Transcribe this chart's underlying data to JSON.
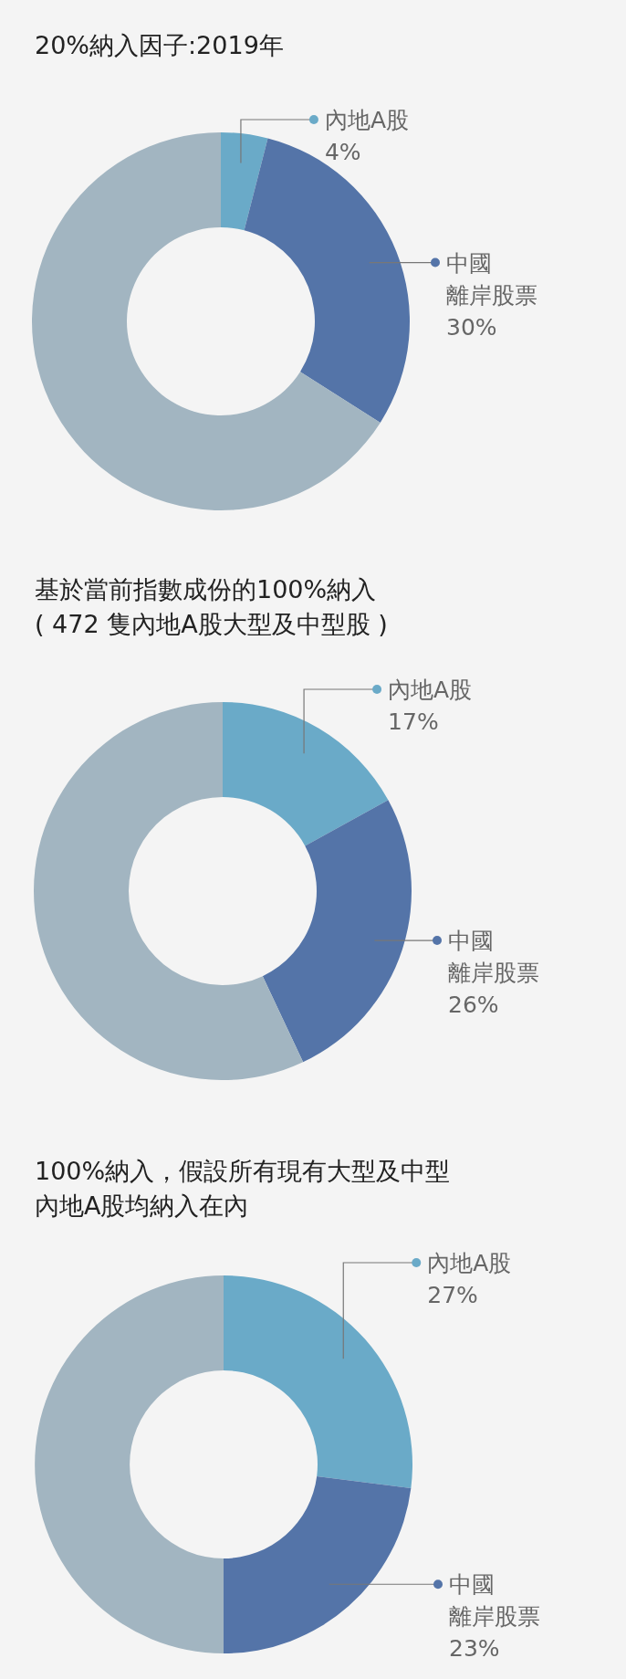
{
  "chart_data": [
    {
      "type": "donut",
      "title": "20%納入因子:2019年",
      "legend": "right",
      "categories": [
        "內地A股",
        "中國離岸股票",
        null
      ],
      "values": [
        4,
        30,
        66
      ],
      "value_labels": [
        "4%",
        "30%",
        null
      ],
      "colors": [
        "#6aaac8",
        "#5474a8",
        "#a2b5c1"
      ]
    },
    {
      "type": "donut",
      "title": "基於當前指數成份的100%納入\n( 472 隻內地A股大型及中型股 )",
      "legend": "right",
      "categories": [
        "內地A股",
        "中國離岸股票",
        null
      ],
      "values": [
        17,
        26,
        57
      ],
      "value_labels": [
        "17%",
        "26%",
        null
      ],
      "colors": [
        "#6aaac8",
        "#5474a8",
        "#a2b5c1"
      ]
    },
    {
      "type": "donut",
      "title": "100%納入，假設所有現有大型及中型內地A股均納入在內",
      "legend": "right",
      "categories": [
        "內地A股",
        "中國離岸股票",
        null
      ],
      "values": [
        27,
        23,
        50
      ],
      "value_labels": [
        "27%",
        "23%",
        null
      ],
      "colors": [
        "#6aaac8",
        "#5474a8",
        "#a2b5c1"
      ]
    }
  ]
}
